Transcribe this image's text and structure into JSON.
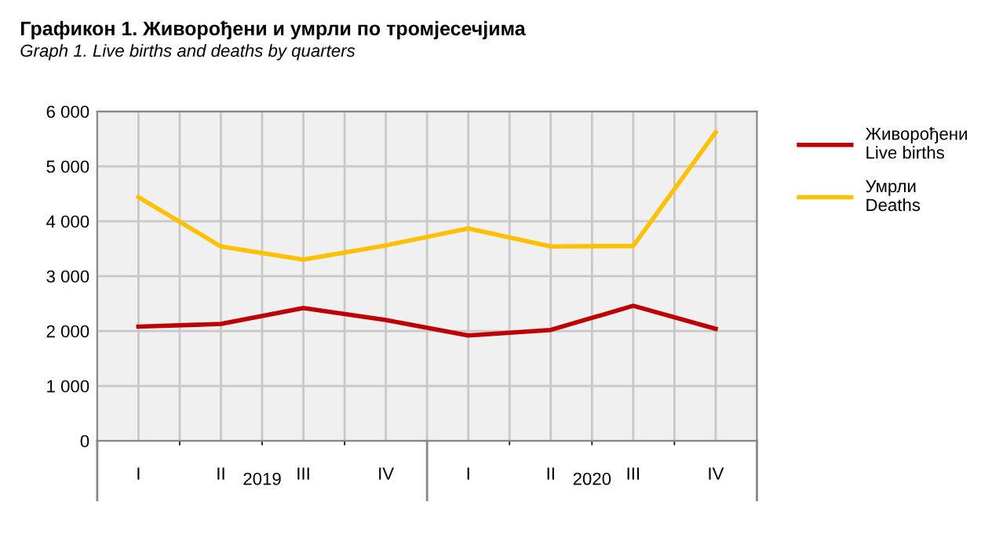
{
  "chart_data": {
    "type": "line",
    "title": "Графикон 1. Живорођени и умрли по тромјесечјима",
    "subtitle": "Graph 1. Live births and deaths by quarters",
    "categories": [
      "I",
      "II",
      "III",
      "IV",
      "I",
      "II",
      "III",
      "IV"
    ],
    "annotations": [
      "2019",
      "2020"
    ],
    "series": [
      {
        "name": "Живорођени\nLive births",
        "color": "#c00000",
        "values": [
          2080,
          2130,
          2420,
          2200,
          1920,
          2020,
          2460,
          2040
        ]
      },
      {
        "name": "Умрли\nDeaths",
        "color": "#ffc000",
        "values": [
          4440,
          3540,
          3300,
          3560,
          3870,
          3540,
          3550,
          5620
        ]
      }
    ],
    "ylim": [
      0,
      6000
    ],
    "yticks": [
      {
        "value": 0,
        "label": "0"
      },
      {
        "value": 1000,
        "label": "1 000"
      },
      {
        "value": 2000,
        "label": "2 000"
      },
      {
        "value": 3000,
        "label": "3 000"
      },
      {
        "value": 4000,
        "label": "4 000"
      },
      {
        "value": 5000,
        "label": "5 000"
      },
      {
        "value": 6000,
        "label": "6 000"
      }
    ],
    "grid": true,
    "legend": "right",
    "marker": "none",
    "line_style": "solid"
  }
}
